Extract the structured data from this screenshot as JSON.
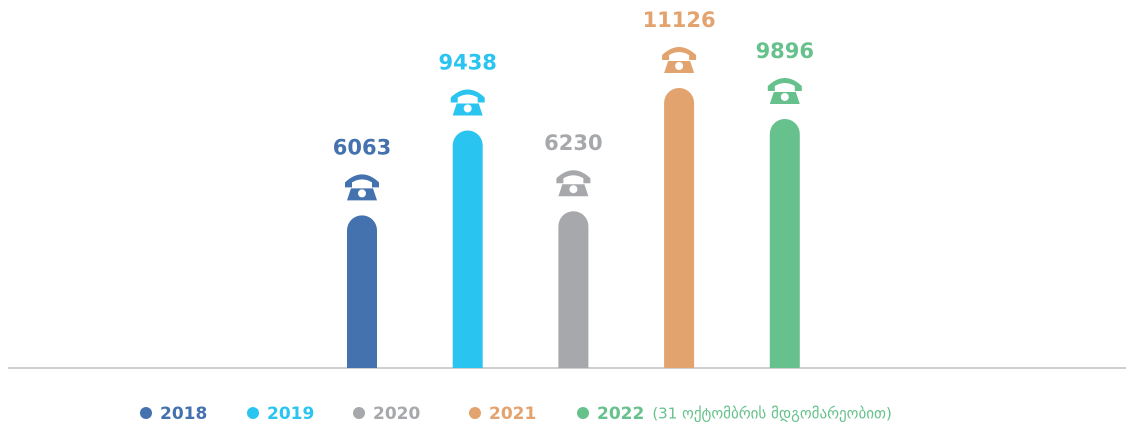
{
  "chart_data": {
    "type": "bar",
    "categories": [
      "2018",
      "2019",
      "2020",
      "2021",
      "2022"
    ],
    "values": [
      6063,
      9438,
      6230,
      11126,
      9896
    ],
    "colors": [
      "#4472ae",
      "#29c4f0",
      "#a7a8ab",
      "#e2a36e",
      "#66c18c"
    ],
    "legend_note": "(31 ოქტომბრის მდგომარეობით)"
  }
}
